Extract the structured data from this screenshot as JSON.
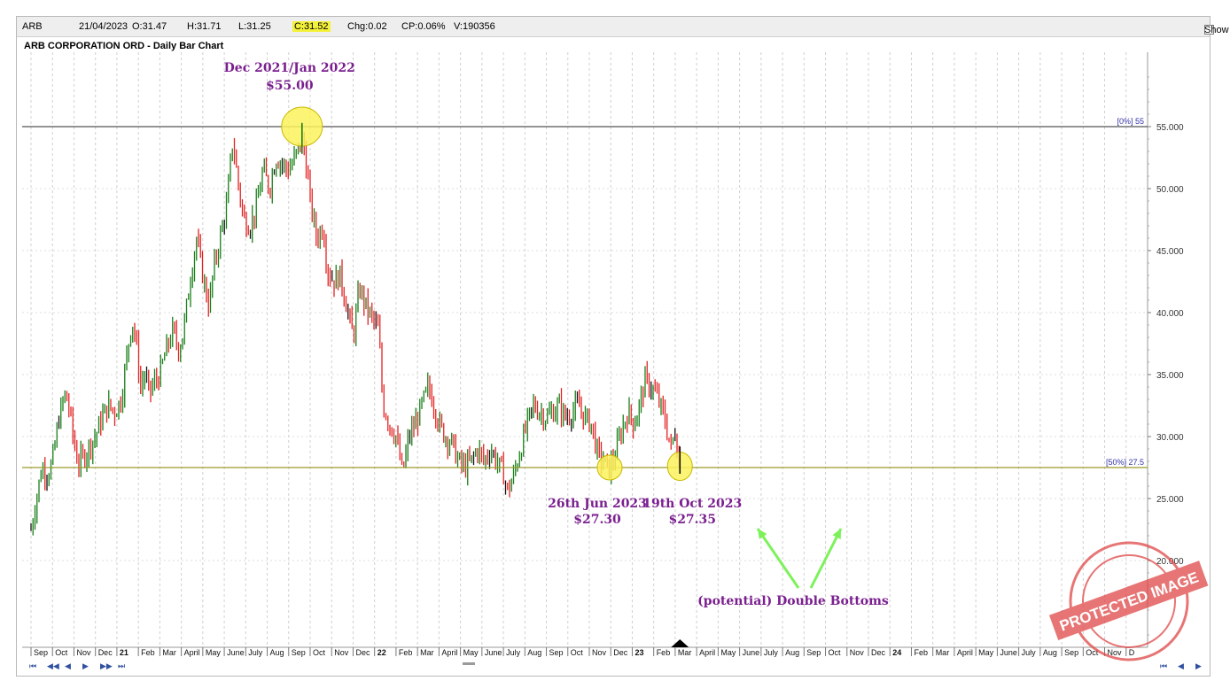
{
  "window": {
    "symbol": "ARB",
    "date": "21/04/2023",
    "open": "O:31.47",
    "high": "H:31.71",
    "low": "L:31.25",
    "close": "C:31.52",
    "change": "Chg:0.02",
    "change_pct": "CP:0.06%",
    "volume": "V:190356",
    "show_last": "Show Last"
  },
  "colors": {
    "up": "#1a7f1a",
    "down": "#e32222",
    "neutral": "#111111",
    "annotation": "#7a1f8f",
    "arrow": "#7cf25a",
    "highlight": "#fbf25c",
    "level_55": "#555555",
    "level_275": "#9a9a2c"
  },
  "chart_data": {
    "type": "bar",
    "title": "ARB CORPORATION ORD - Daily Bar Chart",
    "ylim": [
      13,
      61
    ],
    "yticks": [
      20,
      25,
      30,
      35,
      40,
      45,
      50,
      55
    ],
    "ytick_labels": [
      "20.000",
      "25.000",
      "30.000",
      "35.000",
      "40.000",
      "45.000",
      "50.000",
      "55.000"
    ],
    "x_labels": [
      "Sep",
      "Oct",
      "Nov",
      "Dec",
      "21",
      "Feb",
      "Mar",
      "April",
      "May",
      "June",
      "July",
      "Aug",
      "Sep",
      "Oct",
      "Nov",
      "Dec",
      "22",
      "Feb",
      "Mar",
      "April",
      "May",
      "June",
      "July",
      "Aug",
      "Sep",
      "Oct",
      "Nov",
      "Dec",
      "23",
      "Feb",
      "Mar",
      "April",
      "May",
      "June",
      "July",
      "Aug",
      "Sep",
      "Oct",
      "Nov",
      "Dec",
      "24",
      "Feb",
      "Mar",
      "April",
      "May",
      "June",
      "July",
      "Aug",
      "Sep",
      "Oct",
      "Nov",
      "D"
    ],
    "x_bold": [
      "21",
      "22",
      "23",
      "24"
    ],
    "price_series": [
      [
        0,
        22.5
      ],
      [
        0.2,
        24.5
      ],
      [
        0.5,
        27.5
      ],
      [
        0.8,
        27.0
      ],
      [
        1.0,
        28.0
      ],
      [
        1.3,
        31.5
      ],
      [
        1.6,
        33.5
      ],
      [
        1.8,
        32.0
      ],
      [
        2.0,
        29.5
      ],
      [
        2.2,
        27.8
      ],
      [
        2.5,
        28.5
      ],
      [
        2.8,
        29.5
      ],
      [
        3.0,
        30.0
      ],
      [
        3.3,
        31.5
      ],
      [
        3.6,
        32.5
      ],
      [
        3.9,
        32.0
      ],
      [
        4.2,
        33.0
      ],
      [
        4.5,
        37.0
      ],
      [
        4.7,
        39.5
      ],
      [
        4.9,
        37.5
      ],
      [
        5.1,
        34.0
      ],
      [
        5.3,
        35.0
      ],
      [
        5.5,
        33.5
      ],
      [
        5.8,
        34.5
      ],
      [
        6.0,
        35.0
      ],
      [
        6.3,
        37.0
      ],
      [
        6.6,
        38.5
      ],
      [
        6.9,
        37.0
      ],
      [
        7.1,
        38.5
      ],
      [
        7.4,
        42.5
      ],
      [
        7.7,
        46.0
      ],
      [
        7.9,
        44.0
      ],
      [
        8.1,
        42.0
      ],
      [
        8.3,
        40.5
      ],
      [
        8.5,
        43.5
      ],
      [
        8.8,
        46.0
      ],
      [
        9.1,
        48.5
      ],
      [
        9.4,
        54.0
      ],
      [
        9.6,
        51.0
      ],
      [
        9.9,
        47.5
      ],
      [
        10.2,
        47.0
      ],
      [
        10.5,
        48.5
      ],
      [
        10.8,
        51.5
      ],
      [
        11.1,
        50.0
      ],
      [
        11.4,
        52.5
      ],
      [
        11.7,
        52.0
      ],
      [
        12.0,
        51.5
      ],
      [
        12.3,
        52.5
      ],
      [
        12.6,
        54.0
      ],
      [
        12.75,
        53.0
      ],
      [
        13.0,
        49.0
      ],
      [
        13.3,
        46.0
      ],
      [
        13.6,
        47.0
      ],
      [
        13.8,
        43.5
      ],
      [
        14.1,
        42.5
      ],
      [
        14.4,
        43.0
      ],
      [
        14.7,
        40.5
      ],
      [
        15.0,
        38.0
      ],
      [
        15.3,
        42.0
      ],
      [
        15.6,
        40.5
      ],
      [
        15.9,
        39.5
      ],
      [
        16.2,
        38.5
      ],
      [
        16.3,
        35.0
      ],
      [
        16.4,
        32.5
      ],
      [
        16.7,
        31.0
      ],
      [
        17.0,
        30.0
      ],
      [
        17.3,
        27.0
      ],
      [
        17.6,
        30.0
      ],
      [
        17.9,
        31.0
      ],
      [
        18.2,
        32.5
      ],
      [
        18.5,
        34.0
      ],
      [
        18.7,
        33.0
      ],
      [
        19.0,
        31.0
      ],
      [
        19.3,
        30.0
      ],
      [
        19.6,
        29.5
      ],
      [
        19.9,
        28.0
      ],
      [
        20.2,
        27.5
      ],
      [
        20.5,
        28.0
      ],
      [
        20.8,
        29.0
      ],
      [
        21.1,
        28.0
      ],
      [
        21.4,
        29.0
      ],
      [
        21.7,
        28.0
      ],
      [
        22.0,
        27.0
      ],
      [
        22.2,
        25.5
      ],
      [
        22.5,
        27.0
      ],
      [
        22.8,
        29.0
      ],
      [
        23.1,
        31.0
      ],
      [
        23.4,
        32.5
      ],
      [
        23.7,
        32.0
      ],
      [
        24.0,
        31.5
      ],
      [
        24.3,
        32.0
      ],
      [
        24.6,
        32.5
      ],
      [
        24.9,
        31.5
      ],
      [
        25.2,
        32.0
      ],
      [
        25.5,
        32.5
      ],
      [
        25.8,
        31.5
      ],
      [
        26.1,
        31.0
      ],
      [
        26.4,
        28.5
      ],
      [
        26.7,
        28.0
      ],
      [
        26.9,
        27.3
      ],
      [
        27.2,
        28.5
      ],
      [
        27.5,
        30.5
      ],
      [
        27.8,
        32.0
      ],
      [
        28.1,
        31.0
      ],
      [
        28.4,
        33.0
      ],
      [
        28.6,
        34.5
      ],
      [
        28.9,
        34.0
      ],
      [
        29.2,
        33.0
      ],
      [
        29.5,
        31.5
      ],
      [
        29.8,
        29.0
      ],
      [
        30.0,
        30.5
      ],
      [
        30.2,
        27.35
      ]
    ],
    "levels": [
      {
        "value": 55,
        "label": "[0%] 55"
      },
      {
        "value": 27.5,
        "label": "[50%] 27.5"
      }
    ],
    "annotations": [
      {
        "text": "Dec 2021/Jan 2022",
        "price": "$55.00"
      },
      {
        "text": "26th Jun 2023",
        "price": "$27.30"
      },
      {
        "text": "19th Oct 2023",
        "price": "$27.35"
      },
      {
        "text": "(potential) Double Bottoms"
      }
    ],
    "watermark": "PROTECTED IMAGE"
  }
}
